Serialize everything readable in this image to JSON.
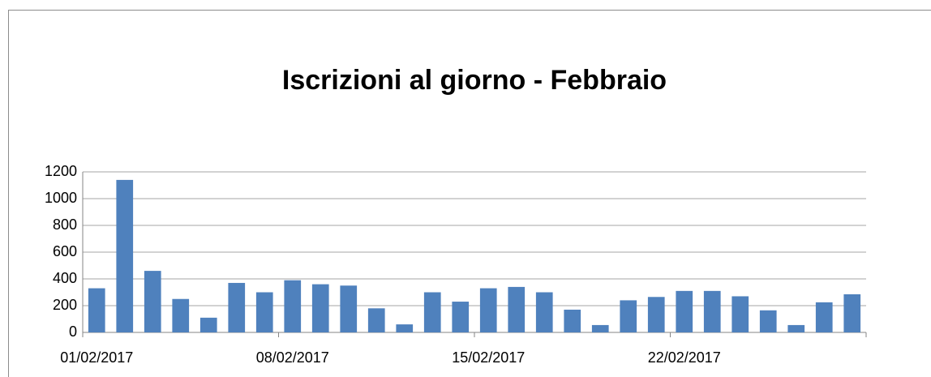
{
  "chart_data": {
    "type": "bar",
    "title": "Iscrizioni al giorno - Febbraio",
    "categories": [
      "01/02/2017",
      null,
      null,
      null,
      null,
      null,
      null,
      "08/02/2017",
      null,
      null,
      null,
      null,
      null,
      null,
      "15/02/2017",
      null,
      null,
      null,
      null,
      null,
      null,
      "22/02/2017",
      null,
      null,
      null,
      null,
      null,
      null
    ],
    "values": [
      330,
      1140,
      460,
      250,
      110,
      370,
      300,
      390,
      360,
      350,
      180,
      60,
      300,
      230,
      330,
      340,
      300,
      170,
      55,
      240,
      265,
      310,
      310,
      270,
      165,
      55,
      225,
      285
    ],
    "color": "#4f81bd",
    "ylim": [
      0,
      1200
    ],
    "yticks": [
      0,
      200,
      400,
      600,
      800,
      1000,
      1200
    ],
    "grid": true
  }
}
